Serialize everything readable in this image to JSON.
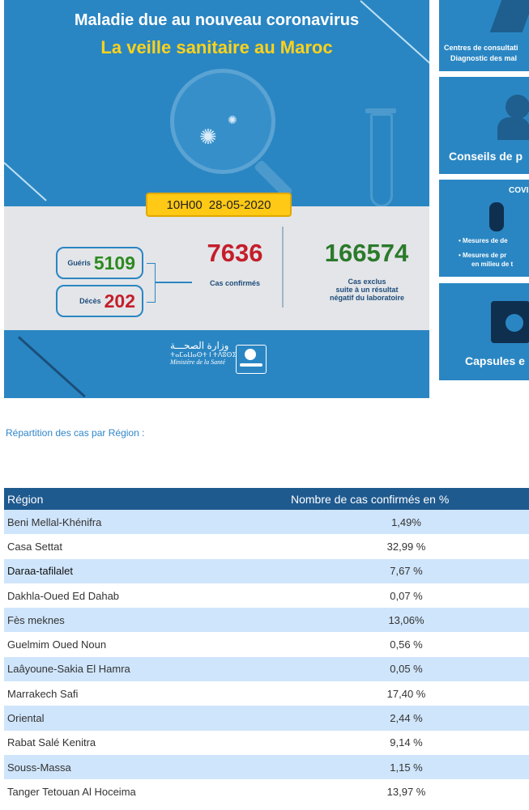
{
  "banner": {
    "title_line1": "Maladie due au nouveau coronavirus",
    "title_line2": "La veille sanitaire au Maroc",
    "time": "10H00",
    "date": "28-05-2020",
    "recovered_label": "Guéris",
    "recovered_value": "5109",
    "deaths_label": "Décès",
    "deaths_value": "202",
    "confirmed_value": "7636",
    "confirmed_label": "Cas confirmés",
    "excluded_value": "166574",
    "excluded_label_1": "Cas exclus",
    "excluded_label_2": "suite à un résultat",
    "excluded_label_3": "négatif du laboratoire",
    "ministry_arabic": "وزارة الصحـــة",
    "ministry_tifinagh": "ⵜⴰⵎⴰⵡⴰⵙⵜ ⵏ ⵜⴷⵓⵙⵉ",
    "ministry_french": "Ministère de la Santé",
    "colors": {
      "background": "#2a86c3",
      "title_yellow": "#ffd21a",
      "confirmed_red": "#c41e2a",
      "excluded_green": "#2b7a2b",
      "recovered_green": "#2b8a1e",
      "deaths_red": "#c41e2a"
    }
  },
  "side_cards": [
    {
      "line1": "Centres de consultati",
      "line2": "Diagnostic des mal"
    },
    {
      "line1": "Conseils de p"
    },
    {
      "title": "COVI",
      "bullet1": "• Mesures de de",
      "bullet2": "• Mesures de pr",
      "bullet2b": "en milieu de t"
    },
    {
      "line1": "Capsules e"
    }
  ],
  "section_heading": "Répartition des cas par Région :",
  "table": {
    "headers": [
      "Région",
      "Nombre de cas confirmés en %"
    ],
    "rows": [
      {
        "region": "Beni Mellal-Khénifra",
        "pct": "1,49%"
      },
      {
        "region": "Casa Settat",
        "pct": "32,99 %"
      },
      {
        "region": "Daraa-tafilalet",
        "pct": "7,67 %"
      },
      {
        "region": "Dakhla-Oued Ed Dahab",
        "pct": "0,07 %"
      },
      {
        "region": "Fès meknes",
        "pct": "13,06%"
      },
      {
        "region": "Guelmim Oued Noun",
        "pct": "0,56 %"
      },
      {
        "region": "Laâyoune-Sakia El Hamra",
        "pct": "0,05 %"
      },
      {
        "region": "Marrakech Safi",
        "pct": "17,40 %"
      },
      {
        "region": "Oriental",
        "pct": "2,44 %"
      },
      {
        "region": "Rabat Salé Kenitra",
        "pct": "9,14 %"
      },
      {
        "region": "Souss-Massa",
        "pct": "1,15 %"
      },
      {
        "region": "Tanger Tetouan Al Hoceima",
        "pct": "13,97 %"
      }
    ]
  }
}
